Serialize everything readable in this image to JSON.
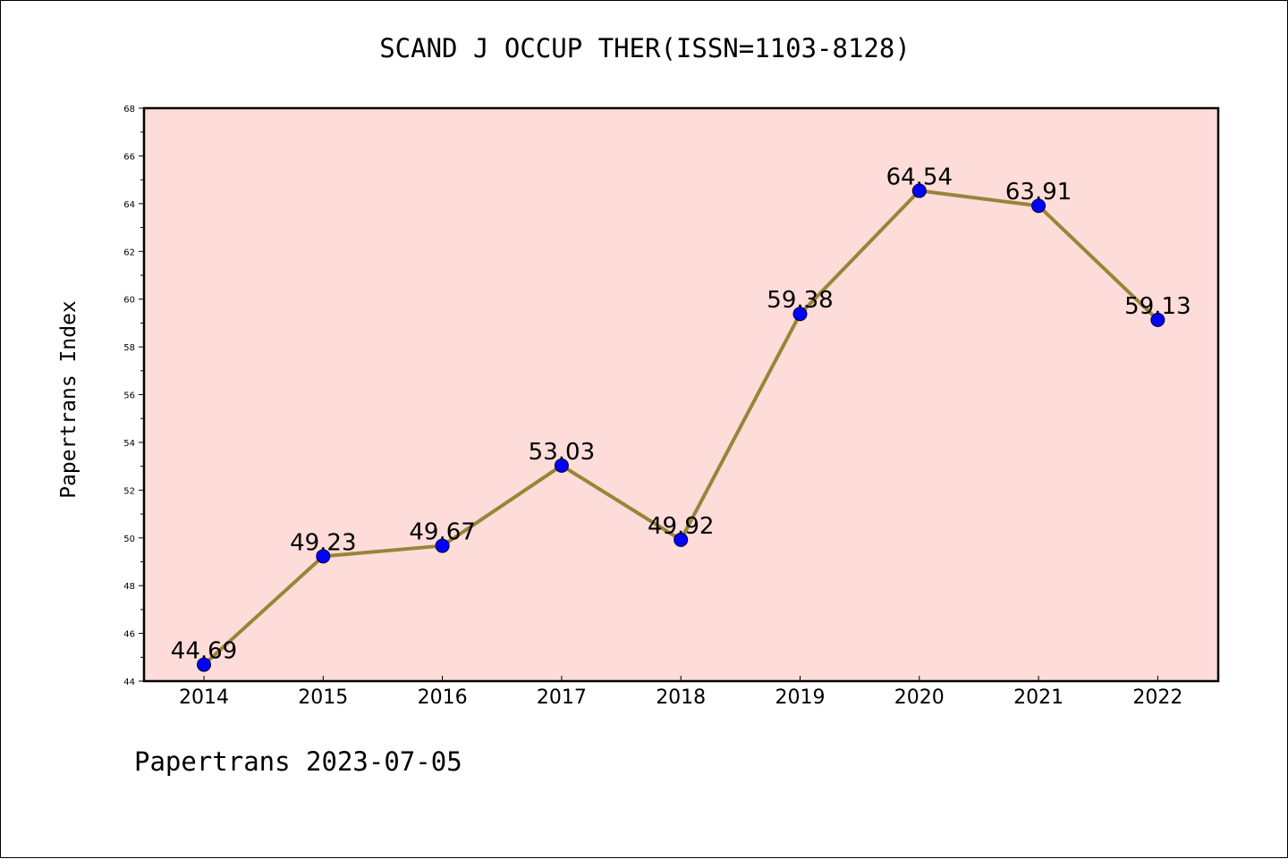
{
  "chart_data": {
    "type": "line",
    "title": "SCAND J OCCUP THER(ISSN=1103-8128)",
    "ylabel": "Papertrans Index",
    "xlabel": "",
    "footer": "Papertrans 2023-07-05",
    "categories": [
      "2014",
      "2015",
      "2016",
      "2017",
      "2018",
      "2019",
      "2020",
      "2021",
      "2022"
    ],
    "series": [
      {
        "values": [
          44.69,
          49.23,
          49.67,
          53.03,
          49.92,
          59.38,
          64.54,
          63.91,
          59.13
        ],
        "labels": [
          "44.69",
          "49.23",
          "49.67",
          "53.03",
          "49.92",
          "59.38",
          "64.54",
          "63.91",
          "59.13"
        ]
      }
    ],
    "ylim": [
      44,
      68
    ],
    "yticks": [
      "44",
      "46",
      "48",
      "50",
      "52",
      "54",
      "56",
      "58",
      "60",
      "62",
      "64",
      "66",
      "68"
    ],
    "grid": false,
    "legend": "none",
    "colors": {
      "plot_background": "#FDDCD9",
      "line": "#9A8438",
      "marker": "#0000FF"
    }
  }
}
